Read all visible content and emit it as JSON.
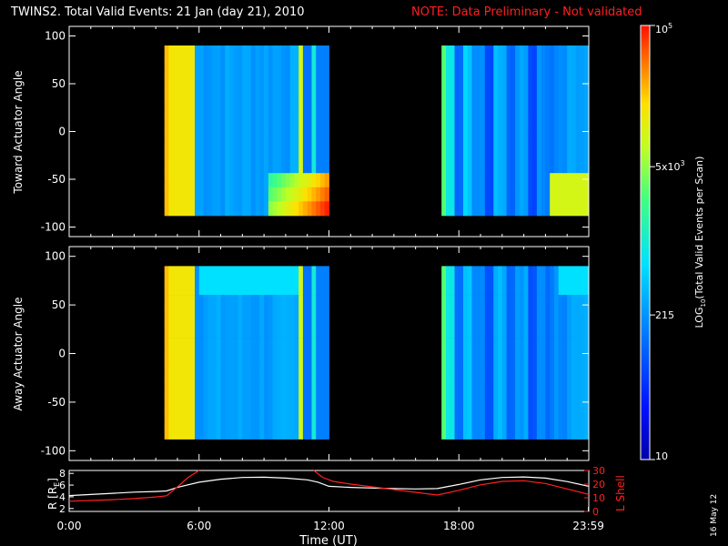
{
  "title": {
    "main": "TWINS2. Total Valid Events: 21 Jan (day  21), 2010",
    "note": "NOTE: Data Preliminary - Not validated"
  },
  "stamp": "16 May 12",
  "colors": {
    "background": "#000000",
    "frame": "#ffffff",
    "note": "#ff2020",
    "l_shell": "#ff2020",
    "r_line": "#ffffff"
  },
  "chart_data": [
    {
      "type": "heatmap",
      "name": "toward",
      "ylabel": "Toward Actuator Angle",
      "ylim": [
        -110,
        110
      ],
      "yticks": [
        100,
        50,
        0,
        -50,
        -100
      ],
      "xlim": [
        0,
        24
      ],
      "angle_range": [
        -88,
        90
      ],
      "data_intervals_hours": [
        [
          4.4,
          12.0
        ],
        [
          17.2,
          24.0
        ]
      ],
      "colormap": "rainbow, log scale"
    },
    {
      "type": "heatmap",
      "name": "away",
      "ylabel": "Away Actuator Angle",
      "ylim": [
        -110,
        110
      ],
      "yticks": [
        100,
        50,
        0,
        -50,
        -100
      ],
      "xlim": [
        0,
        24
      ],
      "angle_range": [
        -88,
        90
      ],
      "data_intervals_hours": [
        [
          4.4,
          12.0
        ],
        [
          17.2,
          24.0
        ]
      ],
      "colormap": "rainbow, log scale"
    },
    {
      "type": "line",
      "name": "orbit",
      "xlabel": "Time (UT)",
      "xlim": [
        0,
        24
      ],
      "xtick_labels": [
        "0:00",
        "6:00",
        "12:00",
        "18:00",
        "23:59"
      ],
      "xtick_hours": [
        0,
        6,
        12,
        18,
        23.983
      ],
      "left_axis": {
        "label": "R [R",
        "label_sub": "E",
        "label_end": "]",
        "ylim": [
          1.5,
          8.5
        ],
        "ticks": [
          2,
          4,
          6,
          8
        ]
      },
      "right_axis": {
        "label": "L Shell",
        "ylim": [
          0,
          30
        ],
        "ticks": [
          0,
          10,
          20,
          30
        ]
      },
      "series": [
        {
          "axis": "left",
          "x": [
            0,
            1,
            2,
            3,
            4,
            4.5,
            5,
            6,
            7,
            8,
            9,
            10,
            11,
            11.5,
            12,
            13,
            14,
            15,
            16,
            17,
            18,
            19,
            20,
            21,
            22,
            23,
            24
          ],
          "y": [
            4.2,
            4.4,
            4.6,
            4.8,
            4.9,
            5.0,
            5.6,
            6.5,
            7.0,
            7.3,
            7.35,
            7.2,
            6.9,
            6.5,
            5.8,
            5.6,
            5.5,
            5.4,
            5.35,
            5.4,
            6.1,
            6.9,
            7.3,
            7.4,
            7.2,
            6.6,
            5.8
          ]
        },
        {
          "axis": "right",
          "x": [
            0,
            1,
            2,
            3,
            4,
            4.5,
            5,
            5.5,
            6
          ],
          "y": [
            7.5,
            8.0,
            8.6,
            9.4,
            10.6,
            11.5,
            18,
            25,
            32
          ]
        },
        {
          "axis": "right",
          "x": [
            11.3,
            11.7,
            12.2,
            13,
            14,
            15,
            16,
            17,
            18,
            19,
            20,
            21,
            22,
            23,
            24
          ],
          "y": [
            31,
            25,
            22,
            20,
            18,
            16,
            14,
            12,
            15.5,
            19.5,
            22,
            22.5,
            20.5,
            16.5,
            12.5
          ]
        }
      ]
    }
  ],
  "colorbar": {
    "label_prefix": "LOG",
    "label_sub": "10",
    "label_suffix": "(Total Valid Events per Scan)",
    "ticks": [
      {
        "base": "10",
        "exp": "5",
        "value": 100000
      },
      {
        "base": "5x10",
        "exp": "3",
        "value": 5000
      },
      {
        "base": "215",
        "exp": "",
        "value": 215
      },
      {
        "base": "10",
        "exp": "",
        "value": 10
      }
    ],
    "range": [
      10,
      100000
    ]
  }
}
